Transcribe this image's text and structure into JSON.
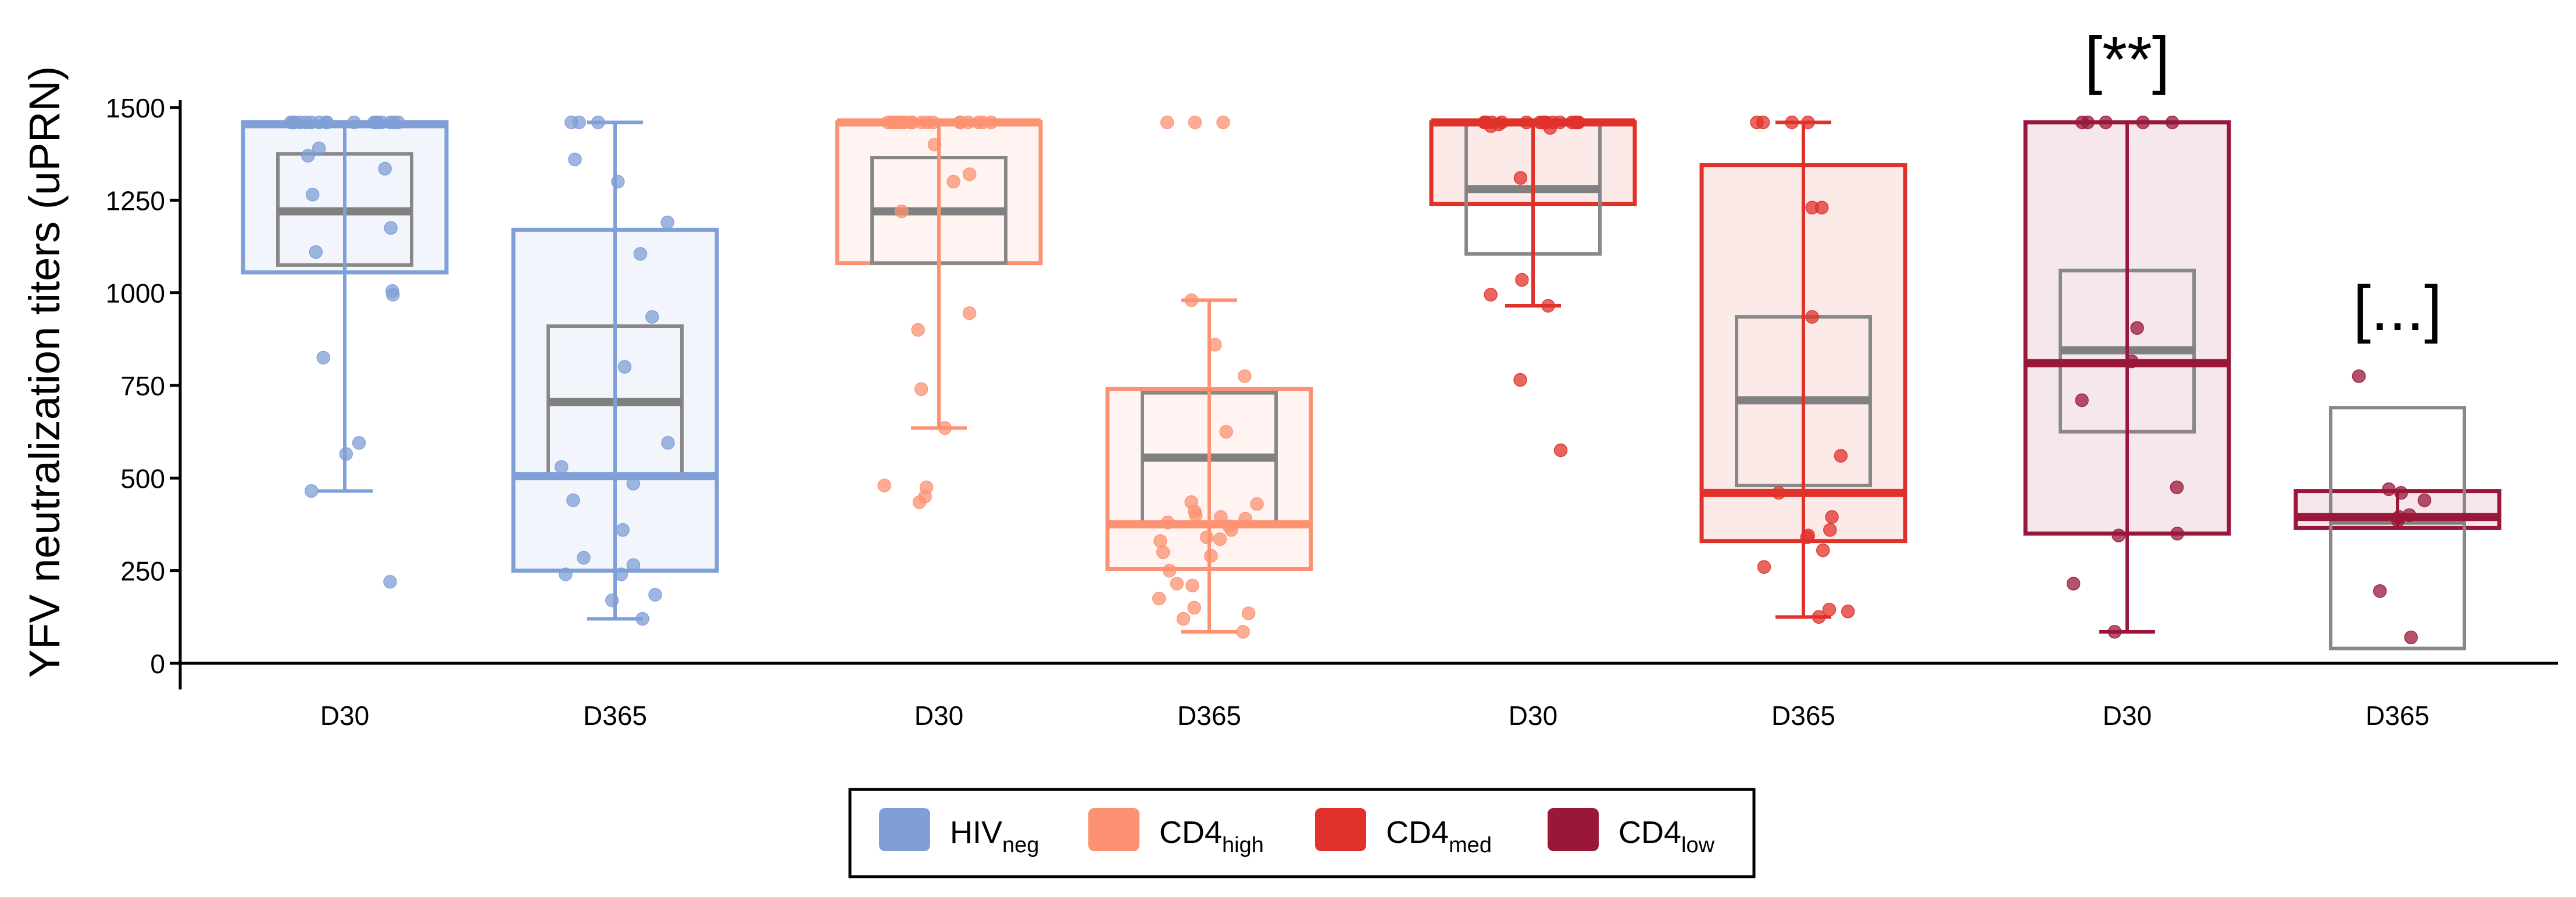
{
  "chart_data": {
    "type": "boxplot",
    "title": "",
    "ylabel": "YFV neutralization titers (uPRN)",
    "xlabel": "",
    "ylim": [
      -50,
      1550
    ],
    "y_ticks": [
      0,
      250,
      500,
      750,
      1000,
      1250,
      1500
    ],
    "y_tick_labels": [
      "0",
      "250",
      "500",
      "750",
      "1000",
      "1250",
      "1500"
    ],
    "legend": {
      "position": "bottom-center",
      "entries": [
        {
          "group": "HIVneg",
          "base": "HIV",
          "sub": "neg",
          "color": "#7f9fd6"
        },
        {
          "group": "CD4high",
          "base": "CD4",
          "sub": "high",
          "color": "#fc9272"
        },
        {
          "group": "CD4med",
          "base": "CD4",
          "sub": "med",
          "color": "#e0312b"
        },
        {
          "group": "CD4low",
          "base": "CD4",
          "sub": "low",
          "color": "#99183a"
        }
      ]
    },
    "annotations": [
      {
        "group": "CD4low",
        "timepoint": "D30",
        "text": "[**]"
      },
      {
        "group": "CD4low",
        "timepoint": "D365",
        "text": "[...]"
      }
    ],
    "boxes": [
      {
        "group": "HIVneg",
        "timepoint": "D30",
        "label": "D30",
        "q1": 1055,
        "median": 1455,
        "q3": 1460,
        "whisker_low": 465,
        "whisker_high": 1460,
        "inner": {
          "q1": 1075,
          "median": 1220,
          "q3": 1375
        },
        "points": [
          1460,
          1460,
          1460,
          1460,
          1460,
          1460,
          1460,
          1460,
          1460,
          1460,
          1460,
          1460,
          1460,
          1460,
          1460,
          1460,
          1460,
          1460,
          1390,
          1370,
          1335,
          1265,
          1175,
          1110,
          1005,
          995,
          825,
          595,
          565,
          465,
          220
        ]
      },
      {
        "group": "HIVneg",
        "timepoint": "D365",
        "label": "D365",
        "q1": 250,
        "median": 505,
        "q3": 1170,
        "whisker_low": 120,
        "whisker_high": 1460,
        "inner": {
          "q1": 505,
          "median": 705,
          "q3": 910
        },
        "points": [
          1460,
          1460,
          1460,
          1360,
          1300,
          1190,
          1105,
          935,
          800,
          595,
          530,
          485,
          440,
          360,
          285,
          265,
          240,
          240,
          185,
          170,
          120
        ]
      },
      {
        "group": "CD4high",
        "timepoint": "D30",
        "label": "D30",
        "q1": 1080,
        "median": 1460,
        "q3": 1460,
        "whisker_low": 635,
        "whisker_high": 1460,
        "inner": {
          "q1": 1080,
          "median": 1220,
          "q3": 1365
        },
        "points": [
          1460,
          1460,
          1460,
          1460,
          1460,
          1460,
          1460,
          1460,
          1460,
          1460,
          1460,
          1460,
          1460,
          1460,
          1460,
          1460,
          1460,
          1460,
          1400,
          1320,
          1300,
          1220,
          945,
          900,
          740,
          635,
          480,
          475,
          450,
          435
        ]
      },
      {
        "group": "CD4high",
        "timepoint": "D365",
        "label": "D365",
        "q1": 255,
        "median": 375,
        "q3": 740,
        "whisker_low": 85,
        "whisker_high": 980,
        "inner": {
          "q1": 375,
          "median": 555,
          "q3": 730
        },
        "points": [
          1460,
          1460,
          1460,
          980,
          860,
          775,
          625,
          435,
          430,
          410,
          400,
          395,
          390,
          380,
          370,
          360,
          340,
          335,
          330,
          300,
          290,
          250,
          215,
          210,
          175,
          150,
          135,
          120,
          85
        ]
      },
      {
        "group": "CD4med",
        "timepoint": "D30",
        "label": "D30",
        "q1": 1240,
        "median": 1460,
        "q3": 1460,
        "whisker_low": 965,
        "whisker_high": 1460,
        "inner": {
          "q1": 1105,
          "median": 1280,
          "q3": 1460
        },
        "points": [
          1460,
          1460,
          1460,
          1460,
          1460,
          1460,
          1460,
          1460,
          1460,
          1460,
          1460,
          1460,
          1460,
          1460,
          1460,
          1460,
          1455,
          1450,
          1445,
          1310,
          1035,
          995,
          965,
          765,
          575
        ]
      },
      {
        "group": "CD4med",
        "timepoint": "D365",
        "label": "D365",
        "q1": 330,
        "median": 460,
        "q3": 1345,
        "whisker_low": 125,
        "whisker_high": 1460,
        "inner": {
          "q1": 480,
          "median": 710,
          "q3": 935
        },
        "points": [
          1460,
          1460,
          1460,
          1460,
          1230,
          1230,
          935,
          560,
          460,
          395,
          360,
          345,
          340,
          305,
          260,
          145,
          140,
          125
        ]
      },
      {
        "group": "CD4low",
        "timepoint": "D30",
        "label": "D30",
        "q1": 350,
        "median": 810,
        "q3": 1460,
        "whisker_low": 85,
        "whisker_high": 1460,
        "inner": {
          "q1": 625,
          "median": 845,
          "q3": 1060
        },
        "points": [
          1460,
          1460,
          1460,
          1460,
          1460,
          905,
          815,
          710,
          475,
          350,
          345,
          215,
          85
        ]
      },
      {
        "group": "CD4low",
        "timepoint": "D365",
        "label": "D365",
        "q1": 365,
        "median": 395,
        "q3": 465,
        "whisker_low": 365,
        "whisker_high": 465,
        "inner": {
          "q1": 40,
          "median": 385,
          "q3": 690
        },
        "points": [
          775,
          470,
          460,
          440,
          400,
          395,
          385,
          195,
          70
        ]
      }
    ]
  }
}
